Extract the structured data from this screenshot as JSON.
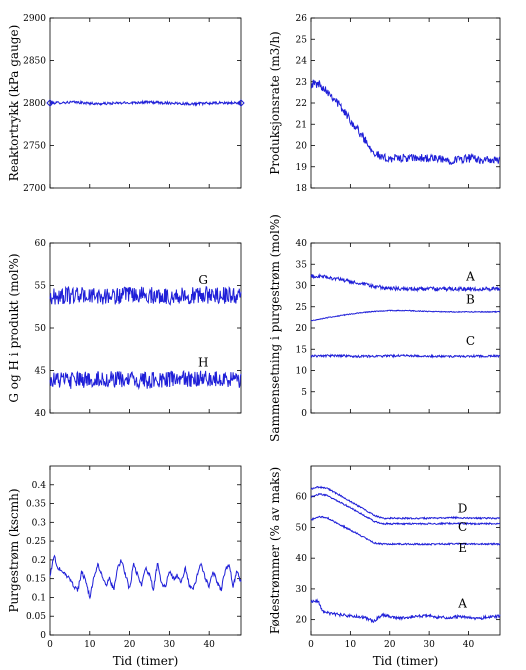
{
  "chart_data": [
    {
      "type": "line",
      "xlabel": "",
      "ylabel": "Reaktortrykk (kPa gauge)",
      "xlim": [
        0,
        48
      ],
      "ylim": [
        2700,
        2900
      ],
      "yticks": [
        "2700",
        "2750",
        "2800",
        "2850",
        "2900"
      ],
      "xticks": [],
      "series": [
        {
          "x": [
            0,
            6,
            12,
            18,
            24,
            30,
            36,
            42,
            48
          ],
          "y": [
            2800,
            2801,
            2799,
            2800,
            2801,
            2800,
            2799,
            2800,
            2800
          ]
        }
      ],
      "noise": [
        1.5
      ],
      "markers": [
        {
          "x": 0,
          "y": 2800
        },
        {
          "x": 48,
          "y": 2800
        }
      ],
      "annotations": []
    },
    {
      "type": "line",
      "xlabel": "",
      "ylabel": "Produksjonsrate (m3/h)",
      "xlim": [
        0,
        48
      ],
      "ylim": [
        18,
        26
      ],
      "yticks": [
        "18",
        "19",
        "20",
        "21",
        "22",
        "23",
        "24",
        "25",
        "26"
      ],
      "xticks": [],
      "series": [
        {
          "x": [
            0,
            2,
            4,
            6,
            8,
            10,
            12,
            14,
            16,
            18,
            20,
            25,
            30,
            35,
            40,
            45,
            48
          ],
          "y": [
            22.9,
            22.9,
            22.6,
            22.2,
            21.7,
            21.2,
            20.7,
            20.2,
            19.7,
            19.4,
            19.4,
            19.4,
            19.4,
            19.3,
            19.4,
            19.3,
            19.3
          ]
        }
      ],
      "noise": [
        0.2
      ],
      "markers": [],
      "annotations": []
    },
    {
      "type": "line",
      "xlabel": "",
      "ylabel": "G og H i produkt (mol%)",
      "xlim": [
        0,
        48
      ],
      "ylim": [
        40,
        60
      ],
      "yticks": [
        "40",
        "45",
        "50",
        "55",
        "60"
      ],
      "xticks": [],
      "series": [
        {
          "x": [
            0,
            6,
            12,
            18,
            24,
            30,
            36,
            42,
            48
          ],
          "y": [
            53.6,
            53.9,
            53.7,
            53.8,
            53.9,
            53.7,
            53.8,
            53.9,
            53.7
          ]
        },
        {
          "x": [
            0,
            6,
            12,
            18,
            24,
            30,
            36,
            42,
            48
          ],
          "y": [
            44.0,
            43.8,
            44.0,
            43.9,
            43.8,
            44.0,
            43.9,
            44.1,
            43.8
          ]
        }
      ],
      "noise": [
        1.0,
        1.0
      ],
      "markers": [],
      "annotations": [
        {
          "text": "G",
          "x": 38.5,
          "y": 55.2
        },
        {
          "text": "H",
          "x": 38.5,
          "y": 45.5
        }
      ]
    },
    {
      "type": "line",
      "xlabel": "",
      "ylabel": "Sammensetning i purgestrøm (mol%)",
      "xlim": [
        0,
        48
      ],
      "ylim": [
        0,
        40
      ],
      "yticks": [
        "0",
        "5",
        "10",
        "15",
        "20",
        "25",
        "30",
        "35",
        "40"
      ],
      "xticks": [],
      "series": [
        {
          "x": [
            0,
            4,
            8,
            12,
            16,
            20,
            24,
            30,
            36,
            42,
            48
          ],
          "y": [
            32.2,
            32.0,
            31.3,
            30.5,
            29.8,
            29.3,
            29.2,
            29.2,
            29.2,
            29.2,
            29.2
          ]
        },
        {
          "x": [
            0,
            4,
            8,
            12,
            16,
            20,
            24,
            30,
            36,
            42,
            48
          ],
          "y": [
            21.7,
            22.4,
            23.0,
            23.5,
            23.9,
            24.1,
            24.1,
            23.9,
            23.8,
            23.8,
            23.8
          ]
        },
        {
          "x": [
            0,
            6,
            12,
            18,
            24,
            30,
            36,
            42,
            48
          ],
          "y": [
            13.4,
            13.5,
            13.3,
            13.4,
            13.5,
            13.4,
            13.3,
            13.4,
            13.4
          ]
        }
      ],
      "noise": [
        0.45,
        0.1,
        0.25
      ],
      "markers": [],
      "annotations": [
        {
          "text": "A",
          "x": 40.5,
          "y": 31.2
        },
        {
          "text": "B",
          "x": 40.5,
          "y": 25.8
        },
        {
          "text": "C",
          "x": 40.5,
          "y": 16.0
        }
      ]
    },
    {
      "type": "line",
      "xlabel": "Tid (timer)",
      "ylabel": "Purgestrøm (kscmh)",
      "xlim": [
        0,
        48
      ],
      "ylim": [
        0,
        0.45
      ],
      "yticks": [
        "0",
        "0.05",
        "0.1",
        "0.15",
        "0.2",
        "0.25",
        "0.3",
        "0.35",
        "0.4"
      ],
      "xticks": [
        "0",
        "10",
        "20",
        "30",
        "40"
      ],
      "series": [
        {
          "x": [
            0,
            1,
            2,
            3,
            4,
            5,
            6,
            7,
            8,
            9,
            10,
            11,
            12,
            13,
            14,
            15,
            16,
            17,
            18,
            19,
            20,
            21,
            22,
            23,
            24,
            25,
            26,
            27,
            28,
            29,
            30,
            31,
            32,
            33,
            34,
            35,
            36,
            37,
            38,
            39,
            40,
            41,
            42,
            43,
            44,
            45,
            46,
            47,
            48
          ],
          "y": [
            0.16,
            0.21,
            0.18,
            0.17,
            0.16,
            0.15,
            0.13,
            0.12,
            0.17,
            0.14,
            0.1,
            0.15,
            0.19,
            0.16,
            0.13,
            0.15,
            0.12,
            0.18,
            0.2,
            0.16,
            0.12,
            0.19,
            0.16,
            0.13,
            0.18,
            0.16,
            0.12,
            0.19,
            0.14,
            0.13,
            0.17,
            0.15,
            0.16,
            0.14,
            0.18,
            0.13,
            0.12,
            0.16,
            0.19,
            0.15,
            0.13,
            0.17,
            0.14,
            0.12,
            0.17,
            0.19,
            0.13,
            0.17,
            0.14
          ]
        }
      ],
      "noise": [
        0.006
      ],
      "markers": [],
      "annotations": []
    },
    {
      "type": "line",
      "xlabel": "Tid (timer)",
      "ylabel": "Fødestrømmer (% av maks)",
      "xlim": [
        0,
        48
      ],
      "ylim": [
        15,
        70
      ],
      "yticks": [
        "20",
        "30",
        "40",
        "50",
        "60"
      ],
      "xticks": [
        "0",
        "10",
        "20",
        "30",
        "40"
      ],
      "series": [
        {
          "x": [
            0,
            2,
            4,
            8,
            12,
            16,
            18,
            24,
            30,
            36,
            42,
            48
          ],
          "y": [
            62.5,
            63.2,
            62.8,
            60.0,
            57.0,
            54.0,
            53.0,
            53.0,
            53.0,
            53.2,
            53.0,
            53.0
          ]
        },
        {
          "x": [
            0,
            2,
            4,
            8,
            12,
            16,
            18,
            24,
            30,
            36,
            42,
            48
          ],
          "y": [
            60.0,
            60.8,
            60.5,
            57.8,
            55.0,
            52.0,
            51.2,
            51.2,
            51.2,
            51.3,
            51.2,
            51.2
          ]
        },
        {
          "x": [
            0,
            2,
            4,
            8,
            12,
            16,
            18,
            24,
            30,
            36,
            42,
            48
          ],
          "y": [
            52.5,
            53.5,
            53.2,
            50.5,
            47.8,
            45.0,
            44.6,
            44.6,
            44.5,
            44.7,
            44.6,
            44.6
          ]
        },
        {
          "x": [
            0,
            1,
            2,
            3,
            5,
            8,
            12,
            14,
            16,
            18,
            22,
            26,
            30,
            34,
            38,
            42,
            46,
            48
          ],
          "y": [
            25.6,
            26.2,
            25.7,
            22.5,
            22.0,
            21.5,
            21.0,
            20.5,
            19.5,
            21.5,
            20.5,
            21.0,
            21.2,
            20.6,
            21.0,
            20.3,
            21.0,
            21.2
          ]
        }
      ],
      "noise": [
        0.25,
        0.25,
        0.25,
        0.5
      ],
      "markers": [],
      "annotations": [
        {
          "text": "D",
          "x": 38.5,
          "y": 54.8
        },
        {
          "text": "C",
          "x": 38.5,
          "y": 48.9
        },
        {
          "text": "E",
          "x": 38.5,
          "y": 42.0
        },
        {
          "text": "A",
          "x": 38.5,
          "y": 24.0
        }
      ]
    }
  ]
}
